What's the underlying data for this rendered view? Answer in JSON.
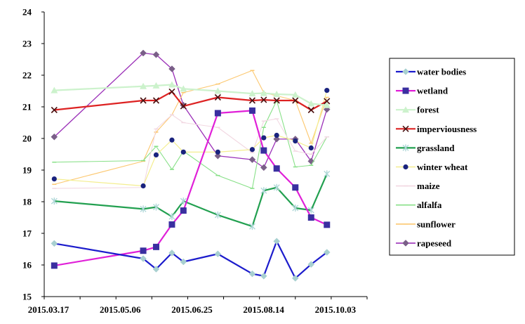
{
  "chart_data": {
    "type": "line",
    "title": "",
    "xlabel": "",
    "ylabel": "",
    "x_ticks": [
      "2015.03.17",
      "2015.05.06",
      "2015.06.25",
      "2015.08.14",
      "2015.10.03"
    ],
    "x_range": [
      0,
      225
    ],
    "y_ticks": [
      "15",
      "16",
      "17",
      "18",
      "19",
      "20",
      "21",
      "22",
      "23",
      "24"
    ],
    "ylim": [
      15,
      24
    ],
    "grid": false,
    "legend_position": "right",
    "series": [
      {
        "name": "water bodies",
        "color": "#1c1ccc",
        "marker": "diamond",
        "marker_color": "#a8d0d0",
        "lw": 2.2,
        "x": [
          7,
          69,
          78,
          89,
          97,
          121,
          145,
          153,
          162,
          175,
          186,
          197
        ],
        "y": [
          16.68,
          16.2,
          15.87,
          16.38,
          16.1,
          16.35,
          15.72,
          15.65,
          16.75,
          15.58,
          16.02,
          16.4
        ]
      },
      {
        "name": "wetland",
        "color": "#e020d8",
        "marker": "square",
        "marker_color": "#3a2fa0",
        "lw": 2.2,
        "x": [
          7,
          69,
          78,
          89,
          97,
          121,
          145,
          153,
          162,
          175,
          186,
          197
        ],
        "y": [
          15.98,
          16.45,
          16.57,
          17.28,
          17.72,
          20.8,
          20.88,
          19.62,
          19.05,
          18.45,
          17.5,
          17.27
        ]
      },
      {
        "name": "forest",
        "color": "#ccf2cc",
        "marker": "triangle",
        "marker_color": "#ccf2cc",
        "lw": 2.2,
        "x": [
          7,
          69,
          78,
          89,
          97,
          121,
          145,
          153,
          162,
          175,
          186,
          197
        ],
        "y": [
          21.52,
          21.65,
          21.67,
          21.7,
          21.57,
          21.5,
          21.42,
          21.43,
          21.4,
          21.38,
          21.1,
          21.05
        ]
      },
      {
        "name": "imperviousness",
        "color": "#dd2222",
        "marker": "x",
        "marker_color": "#4a1010",
        "lw": 2.2,
        "x": [
          7,
          69,
          78,
          89,
          97,
          121,
          145,
          153,
          162,
          175,
          186,
          197
        ],
        "y": [
          20.9,
          21.2,
          21.2,
          21.48,
          21.02,
          21.3,
          21.2,
          21.22,
          21.2,
          21.2,
          20.9,
          21.18
        ]
      },
      {
        "name": "grassland",
        "color": "#22a050",
        "marker": "star",
        "marker_color": "#b0d8d8",
        "lw": 2.2,
        "x": [
          7,
          69,
          78,
          89,
          97,
          121,
          145,
          153,
          162,
          175,
          186,
          197
        ],
        "y": [
          18.02,
          17.77,
          17.83,
          17.53,
          18.02,
          17.58,
          17.22,
          18.35,
          18.45,
          17.8,
          17.73,
          18.88
        ]
      },
      {
        "name": "winter wheat",
        "color": "#f4ee90",
        "marker": "circle",
        "marker_color": "#1a237e",
        "lw": 1.2,
        "x": [
          7,
          69,
          78,
          89,
          97,
          121,
          145,
          153,
          162,
          175,
          186,
          197
        ],
        "y": [
          18.72,
          18.5,
          19.48,
          19.95,
          19.57,
          19.57,
          19.65,
          20.02,
          20.1,
          19.92,
          19.7,
          21.52
        ]
      },
      {
        "name": "maize",
        "color": "#f2d8e2",
        "marker": "dash",
        "marker_color": "#f2d8e2",
        "lw": 1.1,
        "x": [
          7,
          69,
          78,
          89,
          97,
          121,
          145,
          153,
          162,
          175,
          186,
          197
        ],
        "y": [
          18.42,
          18.45,
          20.3,
          20.75,
          20.5,
          20.35,
          19.55,
          20.55,
          20.62,
          19.6,
          19.5,
          20.05
        ]
      },
      {
        "name": "alfalfa",
        "color": "#88e088",
        "marker": "dash",
        "marker_color": "#88e088",
        "lw": 1.1,
        "x": [
          7,
          69,
          78,
          89,
          97,
          121,
          145,
          153,
          162,
          175,
          186,
          197
        ],
        "y": [
          19.25,
          19.3,
          19.75,
          19.02,
          19.6,
          18.83,
          18.42,
          20.35,
          21.2,
          19.1,
          19.15,
          20.05
        ]
      },
      {
        "name": "sunflower",
        "color": "#fcc870",
        "marker": "dash",
        "marker_color": "#fcc870",
        "lw": 1.1,
        "x": [
          7,
          69,
          78,
          89,
          97,
          121,
          145,
          153,
          162,
          175,
          186,
          197
        ],
        "y": [
          18.55,
          19.28,
          20.2,
          20.75,
          21.45,
          21.72,
          22.15,
          21.45,
          21.35,
          21.2,
          19.85,
          21.3
        ]
      },
      {
        "name": "rapeseed",
        "color": "#9b30b8",
        "marker": "diamond",
        "marker_color": "#7a5f88",
        "lw": 1.3,
        "x": [
          7,
          69,
          78,
          89,
          97,
          121,
          145,
          153,
          162,
          175,
          186,
          197
        ],
        "y": [
          20.05,
          22.7,
          22.65,
          22.2,
          21.05,
          19.45,
          19.33,
          19.08,
          19.98,
          19.98,
          19.28,
          20.92
        ]
      }
    ]
  }
}
